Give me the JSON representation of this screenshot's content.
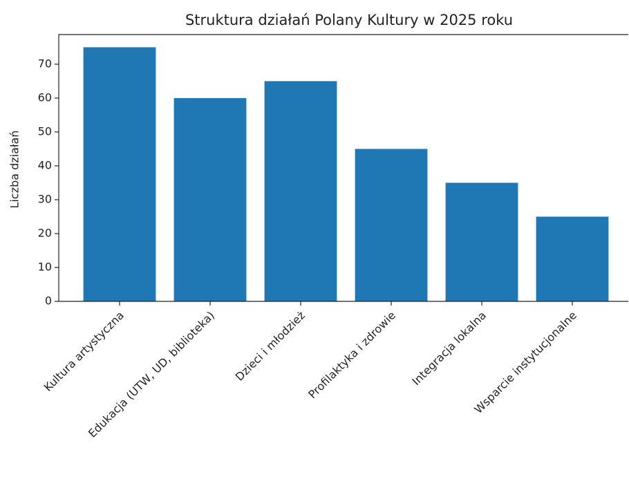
{
  "chart_data": {
    "type": "bar",
    "title": "Struktura działań Polany Kultury w 2025 roku",
    "y_label": "Liczba działań",
    "categories": [
      "Kultura artystyczna",
      "Edukacja (UTW, UD, biblioteka)",
      "Dzieci i młodzież",
      "Profilaktyka i zdrowie",
      "Integracja lokalna",
      "Wsparcie instytucjonalne"
    ],
    "values": [
      75,
      60,
      65,
      45,
      35,
      25
    ],
    "color": "#1f77b4",
    "ylim": [
      0,
      78.75
    ],
    "yticks": [
      0,
      10,
      20,
      30,
      40,
      50,
      60,
      70
    ],
    "grid": false
  }
}
